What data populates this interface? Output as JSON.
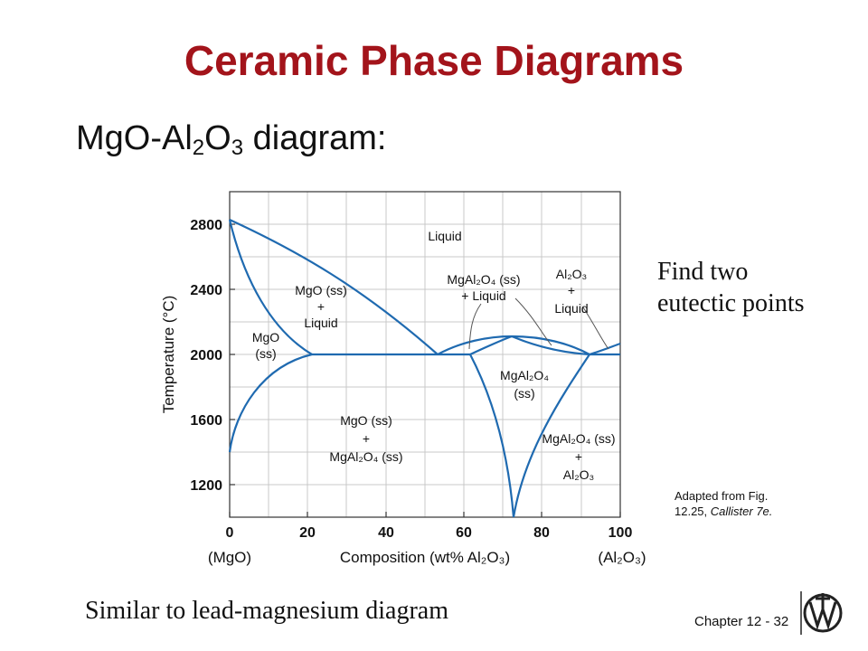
{
  "slide": {
    "title": "Ceramic Phase Diagrams",
    "subtitle_prefix": "MgO-Al",
    "subtitle_sub1": "2",
    "subtitle_mid": "O",
    "subtitle_sub2": "3",
    "subtitle_suffix": " diagram:",
    "note_line1": "Find two",
    "note_line2": "eutectic points",
    "credit_line1": "Adapted from Fig.",
    "credit_line2a": "12.25, ",
    "credit_line2b": "Callister 7e.",
    "bottom_note": "Similar to lead-magnesium diagram",
    "chapter": "Chapter 12 - 32"
  },
  "diagram": {
    "y_axis_label": "Temperature (°C)",
    "x_axis_label": "Composition (wt% Al₂O₃)",
    "x_left_end": "(MgO)",
    "x_right_end": "(Al₂O₃)",
    "y_ticks": [
      "2800",
      "2400",
      "2000",
      "1600",
      "1200"
    ],
    "x_ticks": [
      "0",
      "20",
      "40",
      "60",
      "80",
      "100"
    ],
    "regions": {
      "liquid": "Liquid",
      "mgo_liquid": [
        "MgO (ss)",
        "+",
        "Liquid"
      ],
      "mgo_ss": [
        "MgO",
        "(ss)"
      ],
      "spinel_liquid": [
        "MgAl₂O₄ (ss)",
        "+ Liquid"
      ],
      "al2o3_liquid": [
        "Al₂O₃",
        "+",
        "Liquid"
      ],
      "spinel_ss": [
        "MgAl₂O₄",
        "(ss)"
      ],
      "mgo_spinel": [
        "MgO (ss)",
        "+",
        "MgAl₂O₄ (ss)"
      ],
      "spinel_al2o3": [
        "MgAl₂O₄ (ss)",
        "+",
        "Al₂O₃"
      ]
    },
    "colors": {
      "curve": "#1f6ab0",
      "grid": "#c8c8c8",
      "title": "#a3141b"
    }
  }
}
